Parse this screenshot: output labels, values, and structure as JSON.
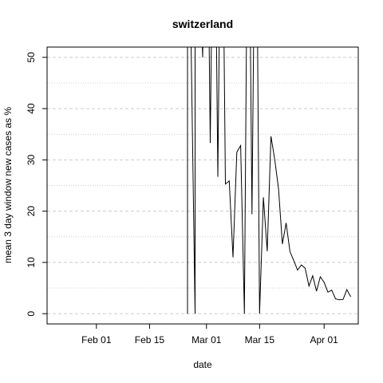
{
  "chart_data": {
    "type": "line",
    "title": "switzerland",
    "xlabel": "date",
    "ylabel": "mean  3  day window new cases as %",
    "x_ticks": [
      "Feb 01",
      "Feb 15",
      "Mar 01",
      "Mar 15",
      "Apr 01"
    ],
    "y_ticks": [
      0,
      10,
      20,
      30,
      40,
      50
    ],
    "x_range": [
      "2020-01-19",
      "2020-04-10"
    ],
    "ylim": [
      -2,
      52
    ],
    "grid": true,
    "series": [
      {
        "x": [
          "2020-02-25",
          "2020-02-25",
          "2020-02-27",
          "2020-02-27",
          "2020-02-29",
          "2020-03-01",
          "2020-03-02",
          "2020-03-03",
          "2020-03-04",
          "2020-03-05",
          "2020-03-06",
          "2020-03-07",
          "2020-03-08",
          "2020-03-09",
          "2020-03-10",
          "2020-03-11",
          "2020-03-12",
          "2020-03-13",
          "2020-03-14",
          "2020-03-15",
          "2020-03-16",
          "2020-03-17",
          "2020-03-18",
          "2020-03-19",
          "2020-03-20",
          "2020-03-21",
          "2020-03-22",
          "2020-03-23",
          "2020-03-24",
          "2020-03-25",
          "2020-03-26",
          "2020-03-27",
          "2020-03-28",
          "2020-03-29",
          "2020-03-30",
          "2020-03-31",
          "2020-04-01",
          "2020-04-02",
          "2020-04-03",
          "2020-04-04",
          "2020-04-05",
          "2020-04-06",
          "2020-04-07",
          "2020-04-08"
        ],
        "y": [
          0,
          100,
          0,
          100,
          50,
          100,
          33.3,
          100,
          26.7,
          100,
          25.3,
          25.9,
          11,
          31.5,
          32.8,
          0,
          100,
          19.4,
          100,
          0,
          22.7,
          12.2,
          34.6,
          30,
          24.3,
          13.6,
          17.7,
          12.1,
          10.4,
          8.5,
          9.5,
          8.9,
          5.4,
          7.4,
          4.4,
          7.2,
          6.1,
          4.2,
          4.6,
          2.9,
          2.7,
          2.8,
          4.7,
          3.3
        ]
      }
    ]
  }
}
